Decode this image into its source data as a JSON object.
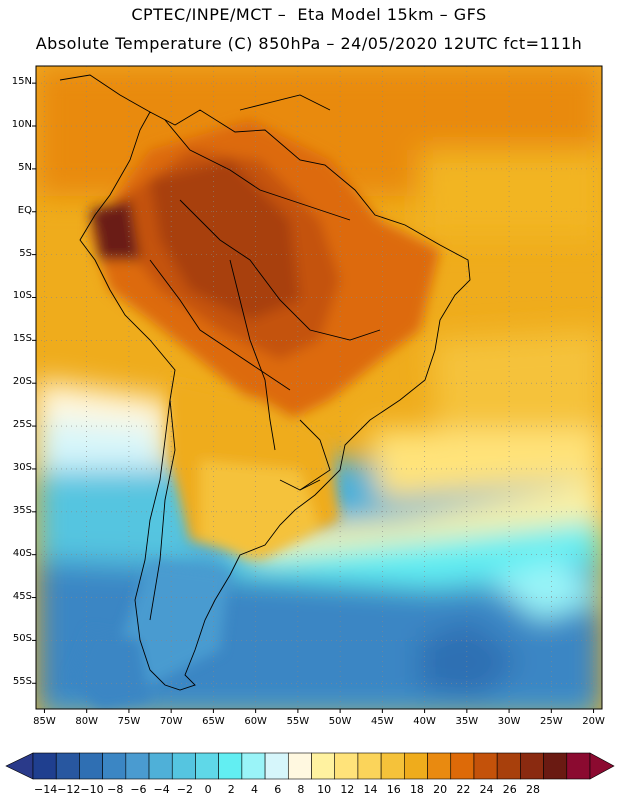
{
  "header": {
    "title_line1": "CPTEC/INPE/MCT –  Eta Model 15km – GFS",
    "title_line2": "Absolute Temperature (C) 850hPa – 24/05/2020 12UTC fct=111h"
  },
  "map": {
    "lon_range": [
      -86,
      -19
    ],
    "lat_range": [
      -58,
      17
    ],
    "lat_labels": [
      "15N",
      "10N",
      "5N",
      "EQ",
      "5S",
      "10S",
      "15S",
      "20S",
      "25S",
      "30S",
      "35S",
      "40S",
      "45S",
      "50S",
      "55S"
    ],
    "lat_values": [
      15,
      10,
      5,
      0,
      -5,
      -10,
      -15,
      -20,
      -25,
      -30,
      -35,
      -40,
      -45,
      -50,
      -55
    ],
    "lon_labels": [
      "85W",
      "80W",
      "75W",
      "70W",
      "65W",
      "60W",
      "55W",
      "50W",
      "45W",
      "40W",
      "35W",
      "30W",
      "25W",
      "20W"
    ],
    "lon_values": [
      -85,
      -80,
      -75,
      -70,
      -65,
      -60,
      -55,
      -50,
      -45,
      -40,
      -35,
      -30,
      -25,
      -20
    ]
  },
  "colorbar": {
    "labels": [
      "-14",
      "-12",
      "-10",
      "-8",
      "-6",
      "-4",
      "-2",
      "0",
      "2",
      "4",
      "6",
      "8",
      "10",
      "12",
      "14",
      "16",
      "18",
      "20",
      "22",
      "24",
      "26",
      "28"
    ],
    "colors": [
      "#1f3f8f",
      "#2857a0",
      "#2f6fb3",
      "#3b86c4",
      "#4a9bd0",
      "#4fb0d8",
      "#55c5e0",
      "#5fd8e8",
      "#62eef2",
      "#9af4f8",
      "#d6f6fb",
      "#fff8e0",
      "#fff2a0",
      "#ffe37a",
      "#fbd45a",
      "#f5c23a",
      "#efac1c",
      "#e98a10",
      "#dd6a08",
      "#c4520a",
      "#a8400c",
      "#8a2a10",
      "#6a1a12",
      "#8b0a30"
    ],
    "under_color": "#2a3a8a",
    "over_color": "#8b0a30"
  }
}
